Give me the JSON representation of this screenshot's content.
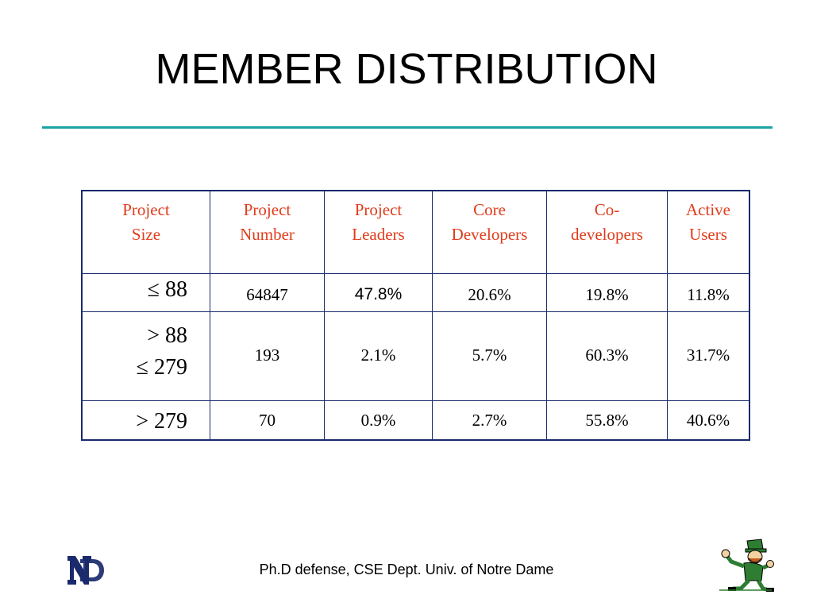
{
  "slide": {
    "title": "MEMBER DISTRIBUTION",
    "footer": "Ph.D defense, CSE Dept. Univ. of Notre Dame"
  },
  "table": {
    "headers": [
      "Project Size",
      "Project Number",
      "Project Leaders",
      "Core Developers",
      "Co-developers",
      "Active Users"
    ],
    "header_lines": [
      [
        "Project",
        "Size"
      ],
      [
        "Project",
        "Number"
      ],
      [
        "Project",
        "Leaders"
      ],
      [
        "Core",
        "Developers"
      ],
      [
        "Co-",
        "developers"
      ],
      [
        "Active",
        "Users"
      ]
    ],
    "rows": [
      {
        "size": [
          "≤ 88"
        ],
        "number": "64847",
        "leaders": "47.8%",
        "core": "20.6%",
        "co": "19.8%",
        "active": "11.8%"
      },
      {
        "size": [
          "> 88",
          "≤ 279"
        ],
        "number": "193",
        "leaders": "2.1%",
        "core": "5.7%",
        "co": "60.3%",
        "active": "31.7%"
      },
      {
        "size": [
          "> 279"
        ],
        "number": "70",
        "leaders": "0.9%",
        "core": "2.7%",
        "co": "55.8%",
        "active": "40.6%"
      }
    ]
  },
  "colors": {
    "header_text": "#e03c1c",
    "border": "#1a2a6c",
    "title_rule": "#1aa3a3"
  },
  "logos": {
    "left": "notre-dame-monogram",
    "right": "leprechaun-mascot",
    "left_text": "ND"
  }
}
